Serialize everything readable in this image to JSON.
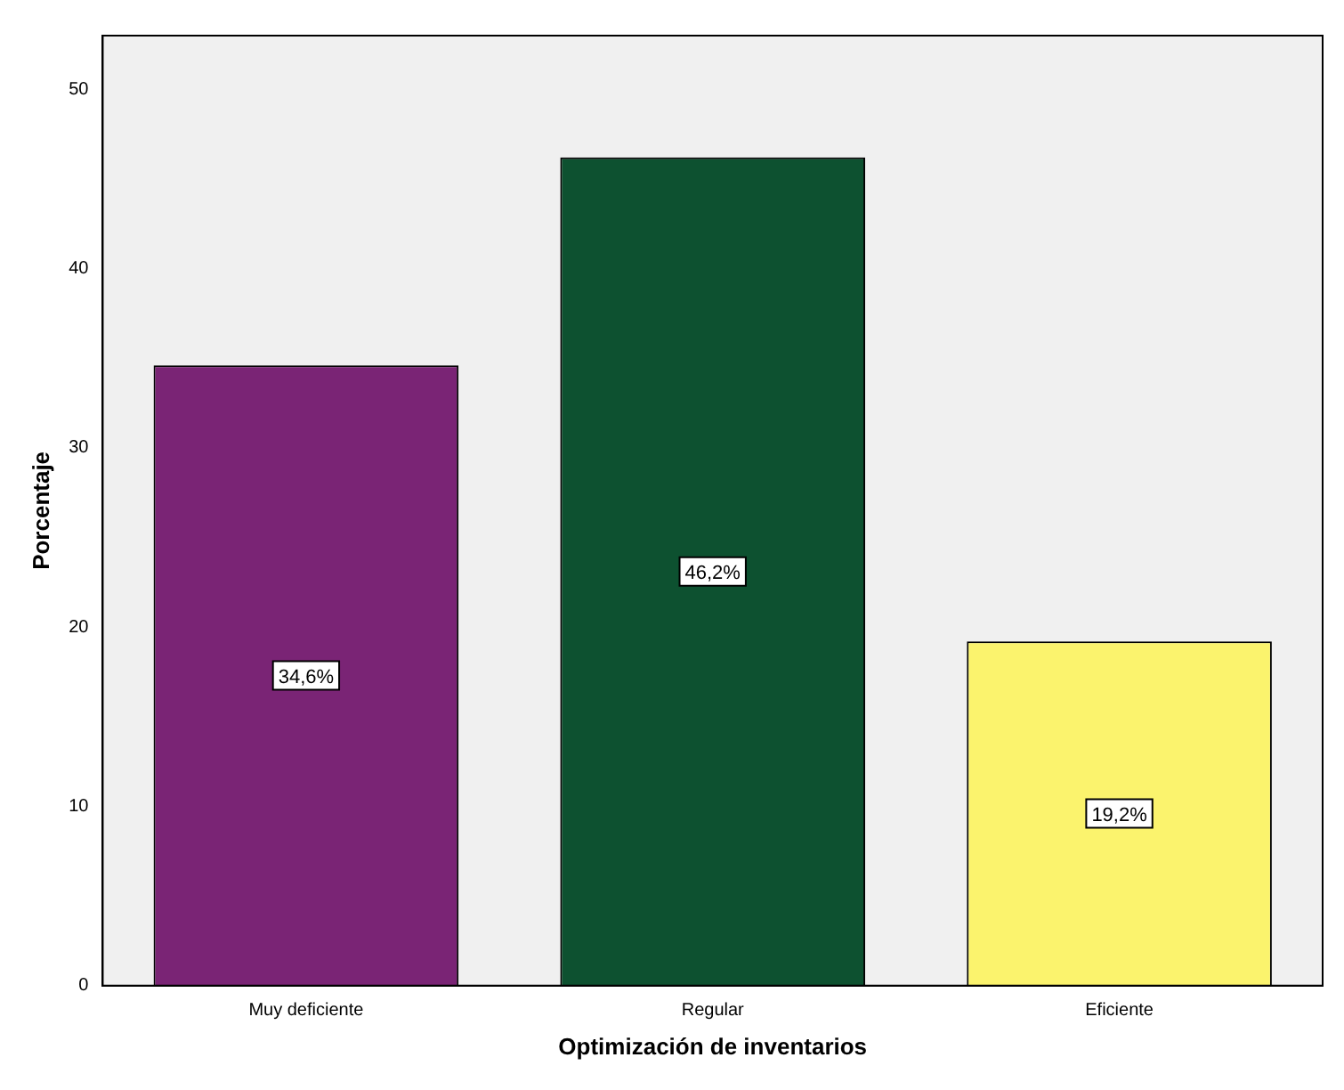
{
  "chart_data": {
    "type": "bar",
    "xlabel": "Optimización de inventarios",
    "ylabel": "Porcentaje",
    "categories": [
      "Muy deficiente",
      "Regular",
      "Eficiente"
    ],
    "values": [
      34.6,
      46.2,
      19.2
    ],
    "colors": [
      "#7a2475",
      "#0d5130",
      "#fbf36d"
    ],
    "value_labels": [
      "34,6%",
      "46,2%",
      "19,2%"
    ],
    "ylim": [
      0,
      53
    ],
    "yticks": [
      0,
      10,
      20,
      30,
      40,
      50
    ],
    "grid": false,
    "legend": false
  }
}
